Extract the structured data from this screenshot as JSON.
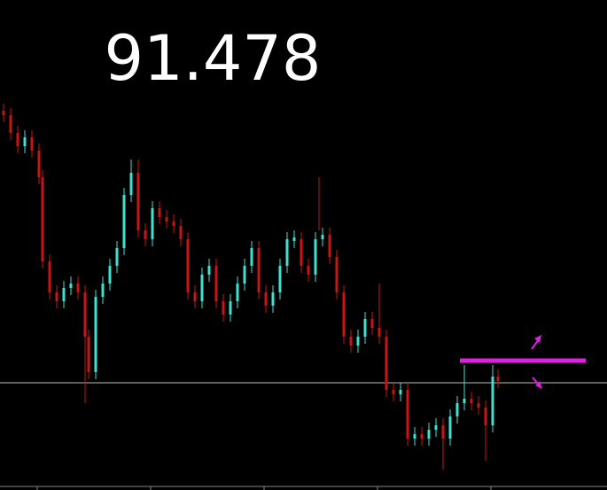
{
  "price": "91.478"
}
